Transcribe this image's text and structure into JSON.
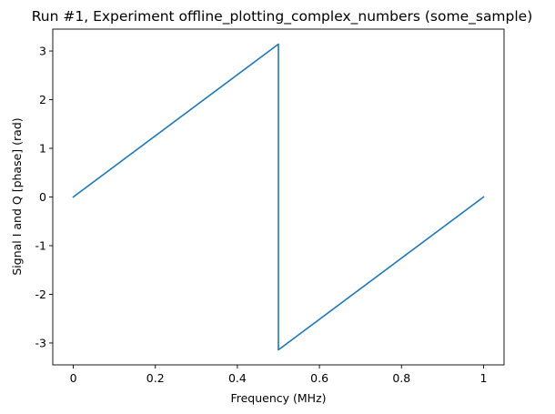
{
  "chart_data": {
    "type": "line",
    "title": "Run #1, Experiment offline_plotting_complex_numbers (some_sample)",
    "xlabel": "Frequency (MHz)",
    "ylabel": "Signal I and Q [phase] (rad)",
    "xlim": [
      -0.05,
      1.05
    ],
    "ylim": [
      -3.45,
      3.45
    ],
    "xticks": [
      0,
      0.2,
      0.4,
      0.6,
      0.8,
      1
    ],
    "xtick_labels": [
      "0",
      "0.2",
      "0.4",
      "0.6",
      "0.8",
      "1"
    ],
    "yticks": [
      3,
      2,
      1,
      0,
      -1,
      -2,
      -3
    ],
    "ytick_labels": [
      "3",
      "2",
      "1",
      "0",
      "-1",
      "-2",
      "-3"
    ],
    "grid": false,
    "series": [
      {
        "color": "#1f77b4",
        "x": [
          0,
          0.5,
          0.5,
          1
        ],
        "y": [
          0,
          3.1416,
          -3.1416,
          0
        ]
      }
    ]
  }
}
